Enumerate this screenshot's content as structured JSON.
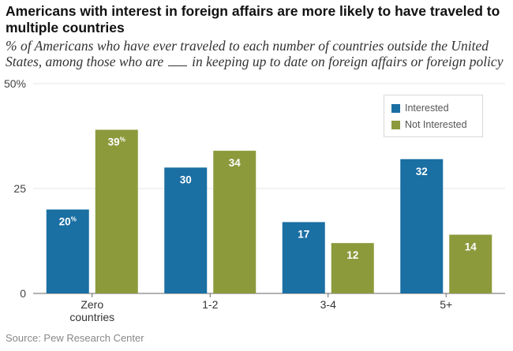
{
  "title": "Americans with interest in foreign affairs are more likely to have traveled to multiple countries",
  "subtitle_before": "% of Americans who have ever traveled to each number of countries outside the United States, among those who are",
  "subtitle_after": "in keeping up to date on foreign affairs or foreign policy",
  "source": "Source: Pew Research Center",
  "colors": {
    "interested": "#1a6fa3",
    "not_interested": "#8c9a3c"
  },
  "chart_data": {
    "type": "bar",
    "title": "Americans with interest in foreign affairs are more likely to have traveled to multiple countries",
    "xlabel": "",
    "ylabel": "",
    "ylim": [
      0,
      50
    ],
    "yticks": [
      0,
      25,
      50
    ],
    "ytick_labels": [
      "0",
      "25",
      "50%"
    ],
    "categories": [
      [
        "Zero",
        "countries"
      ],
      [
        "1-2"
      ],
      [
        "3-4"
      ],
      [
        "5+"
      ]
    ],
    "series": [
      {
        "name": "Interested",
        "values": [
          20,
          30,
          17,
          32
        ],
        "labels": [
          "20",
          "30",
          "17",
          "32"
        ]
      },
      {
        "name": "Not Interested",
        "values": [
          39,
          34,
          12,
          14
        ],
        "labels": [
          "39",
          "34",
          "12",
          "14"
        ]
      }
    ],
    "percent_suffix_on": [
      0
    ],
    "legend": "top-right"
  }
}
